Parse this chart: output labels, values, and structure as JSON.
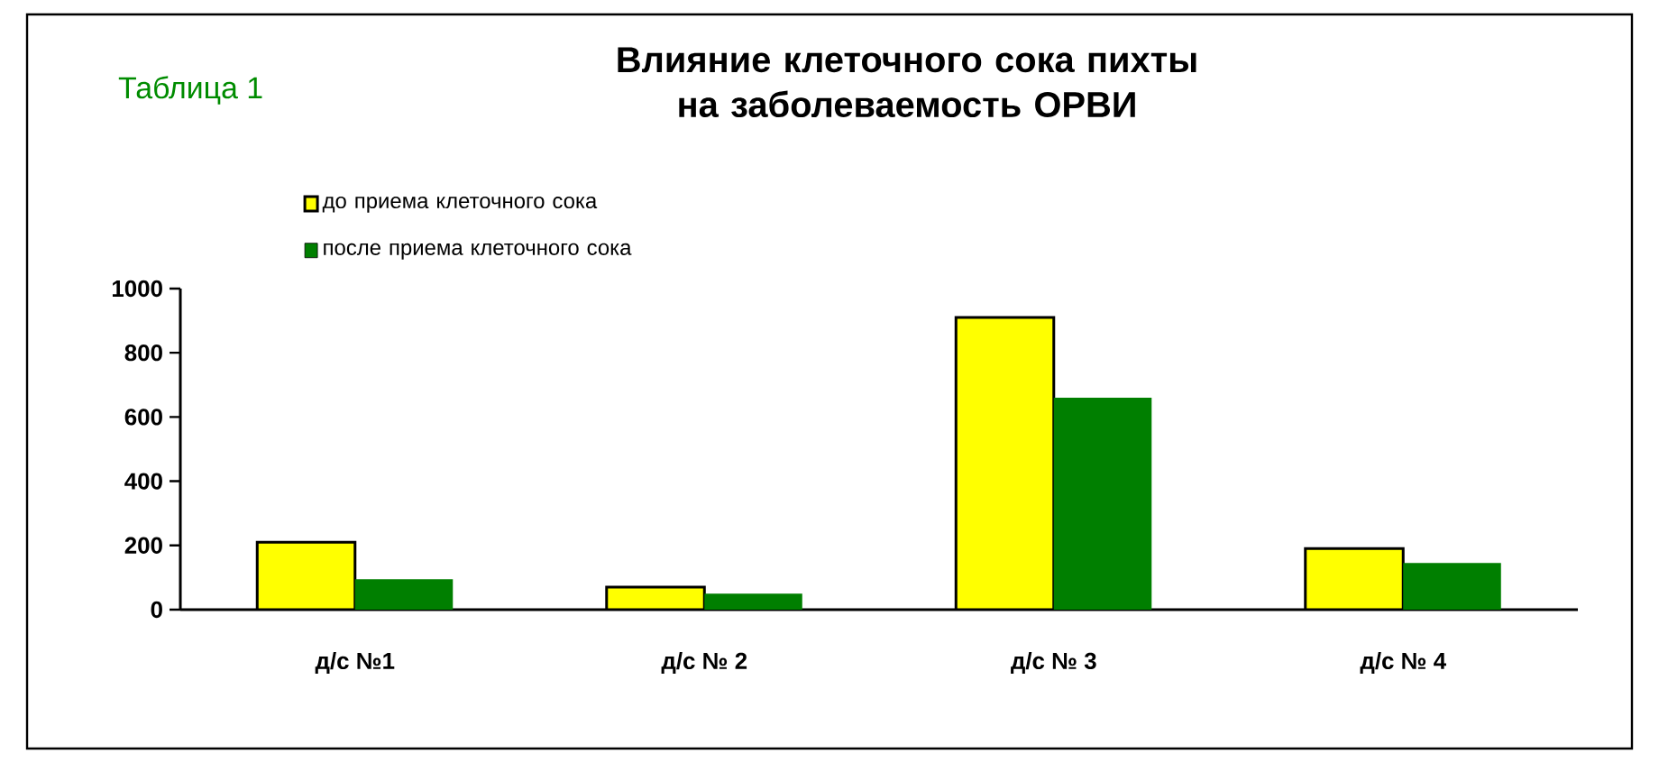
{
  "chart_data": {
    "type": "bar",
    "title": "Влияние клеточного сока пихты на заболеваемость ОРВИ",
    "categories": [
      "д/с №1",
      "д/с № 2",
      "д/с № 3",
      "д/с № 4"
    ],
    "series": [
      {
        "name": "до приема клеточного сока",
        "color": "#ffff00",
        "values": [
          210,
          70,
          910,
          190
        ]
      },
      {
        "name": "после приема клеточного сока",
        "color": "#007f00",
        "values": [
          95,
          50,
          660,
          145
        ]
      }
    ],
    "ylim": [
      0,
      1000
    ],
    "yticks": [
      0,
      200,
      400,
      600,
      800,
      1000
    ],
    "legend": "top left",
    "grid": false,
    "annotations": [
      "Таблица 1"
    ]
  }
}
